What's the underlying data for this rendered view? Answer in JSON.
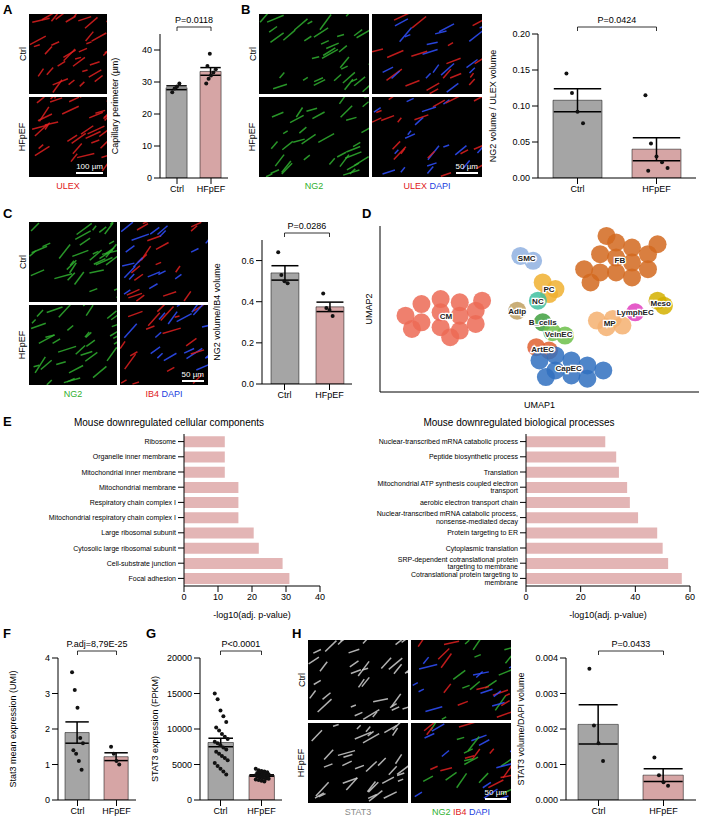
{
  "chart_data": [
    {
      "panel": "A",
      "type": "bar",
      "categories": [
        "Ctrl",
        "HFpEF"
      ],
      "values": [
        28.2,
        33.3
      ],
      "errors": [
        0.6,
        1.2
      ],
      "points": [
        [
          26.8,
          28.0,
          28.6,
          29.5
        ],
        [
          29.5,
          31.0,
          32.0,
          33.0,
          34.0,
          35.0,
          38.8
        ]
      ],
      "colors": [
        "#a5a5a5",
        "#d6a5a5"
      ],
      "y_label": "Capillary perimeter (µm)",
      "ylim": [
        0,
        45
      ],
      "yticks": [
        0,
        10,
        20,
        30,
        40
      ],
      "annotation": "P=0.0118"
    },
    {
      "panel": "B",
      "type": "bar",
      "categories": [
        "Ctrl",
        "HFpEF"
      ],
      "values": [
        0.108,
        0.04
      ],
      "errors": [
        0.016,
        0.016
      ],
      "points": [
        [
          0.145,
          0.118,
          0.092,
          0.076
        ],
        [
          0.115,
          0.048,
          0.03,
          0.022,
          0.014,
          0.01
        ]
      ],
      "colors": [
        "#a5a5a5",
        "#d6a5a5"
      ],
      "y_label": "NG2 volume / ULEX volume",
      "ylim": [
        0,
        0.2
      ],
      "yticks": [
        {
          "value": 0,
          "label": "0.00"
        },
        0.05,
        {
          "value": 0.1,
          "label": "0.10"
        },
        0.15,
        {
          "value": 0.2,
          "label": "0.20"
        }
      ],
      "annotation": "P=0.0424"
    },
    {
      "panel": "C",
      "type": "bar",
      "categories": [
        "Ctrl",
        "HFpEF"
      ],
      "values": [
        0.54,
        0.375
      ],
      "errors": [
        0.035,
        0.023
      ],
      "points": [
        [
          0.64,
          0.53,
          0.5,
          0.49
        ],
        [
          0.44,
          0.37,
          0.36,
          0.33
        ]
      ],
      "colors": [
        "#a5a5a5",
        "#d6a5a5"
      ],
      "y_label": "NG2 volume/IB4 volume",
      "ylim": [
        0,
        0.7
      ],
      "yticks": [
        {
          "value": 0,
          "label": "0.0"
        },
        0.2,
        0.4,
        0.6
      ],
      "annotation": "P=0.0286"
    },
    {
      "panel": "D",
      "type": "scatter",
      "x_label": "UMAP1",
      "y_label": "UMAP2",
      "xlim": [
        0,
        10
      ],
      "ylim": [
        0,
        10
      ],
      "tick_labels": false,
      "series": [
        {
          "name": "CM",
          "color": "#ec6a55",
          "points": [
            [
              0.8,
              4.6
            ],
            [
              1.3,
              5.3
            ],
            [
              1.3,
              4.2
            ],
            [
              1.9,
              5.6
            ],
            [
              1.9,
              4.8
            ],
            [
              1.9,
              3.9
            ],
            [
              2.5,
              5.4
            ],
            [
              2.5,
              4.6
            ],
            [
              2.5,
              3.7
            ],
            [
              3.0,
              4.9
            ],
            [
              3.0,
              4.1
            ],
            [
              1.0,
              3.8
            ],
            [
              2.2,
              3.3
            ],
            [
              3.2,
              5.5
            ]
          ]
        },
        {
          "name": "FB",
          "color": "#d2691e",
          "points": [
            [
              6.4,
              7.4
            ],
            [
              6.9,
              8.3
            ],
            [
              6.9,
              7.2
            ],
            [
              7.4,
              9.0
            ],
            [
              7.4,
              8.1
            ],
            [
              7.4,
              7.2
            ],
            [
              7.9,
              8.7
            ],
            [
              7.9,
              7.8
            ],
            [
              7.9,
              6.9
            ],
            [
              8.4,
              8.3
            ],
            [
              8.4,
              7.4
            ],
            [
              8.7,
              8.9
            ],
            [
              7.1,
              9.4
            ],
            [
              6.6,
              6.6
            ]
          ]
        },
        {
          "name": "SMC",
          "color": "#8fb0e0",
          "points": [
            [
              4.4,
              8.2
            ],
            [
              4.8,
              7.9
            ]
          ]
        },
        {
          "name": "PC",
          "color": "#f0b030",
          "points": [
            [
              5.1,
              6.6
            ],
            [
              5.5,
              6.2
            ],
            [
              5.3,
              5.9
            ]
          ]
        },
        {
          "name": "NC",
          "color": "#40c0a0",
          "points": [
            [
              4.95,
              5.5
            ]
          ]
        },
        {
          "name": "Adip",
          "color": "#c0a060",
          "points": [
            [
              4.3,
              4.9
            ]
          ]
        },
        {
          "name": "Meso",
          "color": "#d4b000",
          "points": [
            [
              8.7,
              5.5
            ],
            [
              8.9,
              5.2
            ]
          ]
        },
        {
          "name": "LymphEC",
          "color": "#e040c0",
          "points": [
            [
              8.0,
              4.8
            ]
          ]
        },
        {
          "name": "MP",
          "color": "#f5b070",
          "points": [
            [
              6.8,
              4.3
            ],
            [
              7.3,
              4.4
            ],
            [
              7.6,
              4.0
            ],
            [
              7.1,
              3.9
            ]
          ]
        },
        {
          "name": "B_cells",
          "color": "#40a040",
          "points": [
            [
              5.1,
              4.2
            ]
          ]
        },
        {
          "name": "VeinEC",
          "color": "#6cc04a",
          "points": [
            [
              5.4,
              3.6
            ],
            [
              5.8,
              3.4
            ]
          ]
        },
        {
          "name": "ArtEC",
          "color": "#e06030",
          "points": [
            [
              4.9,
              2.7
            ],
            [
              5.3,
              2.5
            ]
          ]
        },
        {
          "name": "CapEC",
          "color": "#3070c0",
          "points": [
            [
              5.0,
              1.9
            ],
            [
              5.5,
              2.2
            ],
            [
              5.5,
              1.3
            ],
            [
              6.0,
              1.9
            ],
            [
              6.0,
              1.0
            ],
            [
              6.5,
              1.6
            ],
            [
              6.5,
              0.8
            ],
            [
              7.0,
              1.3
            ],
            [
              5.2,
              0.9
            ]
          ]
        }
      ]
    },
    {
      "panel": "E",
      "type": "bar",
      "orientation": "horizontal",
      "title": "Mouse downregulated cellular components",
      "categories": [
        "Ribosome",
        "Organelle inner membrane",
        "Mitochondrial inner membrane",
        "Mitochondrial membrane",
        "Respiratory chain complex I",
        "Mitochondrial respiratory chain complex I",
        "Large ribosomal subunit",
        "Cytosolic large ribosomal subunit",
        "Cell-substrate junction",
        "Focal adhesion"
      ],
      "values": [
        12,
        12,
        12,
        16,
        16,
        16,
        20.5,
        22,
        29,
        31
      ],
      "color": "#e3b5b5",
      "x_label": "-log10(adj. p-value)",
      "xlim": [
        0,
        40
      ],
      "xticks": [
        0,
        10,
        20,
        30,
        40
      ]
    },
    {
      "type": "bar",
      "orientation": "horizontal",
      "title": "Mouse downregulated biological processes",
      "categories": [
        "Nuclear-transcribed mRNA catabolic process",
        "Peptide biosynthetic process",
        "Translation",
        "Mitochondrial ATP synthesis coupled electron transport",
        "aerobic electron transport chain",
        "Nuclear-transcribed mRNA catabolic process, nonsense-mediated decay",
        "Protein targeting to ER",
        "Cytoplasmic translation",
        "SRP-dependent cotranslational protein targeting to membrane",
        "Cotranslational protein targeting to membrane"
      ],
      "values": [
        29,
        33,
        34,
        37,
        38,
        41,
        48,
        50,
        52,
        57
      ],
      "color": "#e3b5b5",
      "x_label": "-log10(adj. p-value)",
      "xlim": [
        0,
        60
      ],
      "xticks": [
        0,
        20,
        40,
        60
      ]
    },
    {
      "panel": "F",
      "type": "bar",
      "categories": [
        "Ctrl",
        "HFpEF"
      ],
      "values": [
        1.9,
        1.22
      ],
      "errors": [
        0.3,
        0.11
      ],
      "points": [
        [
          3.6,
          3.1,
          2.6,
          1.75,
          1.6,
          1.4,
          1.3,
          1.1,
          0.85
        ],
        [
          1.5,
          1.3,
          1.1,
          1.0
        ]
      ],
      "colors": [
        "#a5a5a5",
        "#d6a5a5"
      ],
      "y_label": "Stat3 mean expression (UMI)",
      "ylim": [
        0,
        4
      ],
      "yticks": [
        0,
        1,
        2,
        3,
        4
      ],
      "annotation": "P.adj=8,79E-25"
    },
    {
      "panel": "G",
      "type": "bar",
      "categories": [
        "Ctrl",
        "HFpEF"
      ],
      "values": [
        8100,
        3450
      ],
      "errors": [
        600,
        100
      ],
      "points": [
        [
          15000,
          14200,
          12600,
          11800,
          11000,
          10200,
          9800,
          9300,
          8900,
          8600,
          8200,
          8000,
          7700,
          7400,
          7100,
          6800,
          6500,
          6200,
          5900,
          5600,
          5200,
          4800,
          4400,
          4000,
          3600
        ],
        [
          4400,
          4200,
          4100,
          4000,
          3900,
          3800,
          3800,
          3700,
          3600,
          3600,
          3500,
          3500,
          3400,
          3400,
          3300,
          3300,
          3200,
          3100,
          3000,
          3000,
          2900,
          2800,
          2700,
          2600
        ]
      ],
      "colors": [
        "#a5a5a5",
        "#d6a5a5"
      ],
      "y_label": "STAT3 expression (FPKM)",
      "ylim": [
        0,
        20000
      ],
      "yticks": [
        0,
        5000,
        10000,
        15000,
        20000
      ],
      "annotation": "P<0.0001"
    },
    {
      "panel": "H",
      "type": "bar",
      "categories": [
        "Ctrl",
        "HFpEF"
      ],
      "values": [
        0.00213,
        0.0007
      ],
      "errors": [
        0.00055,
        0.00018
      ],
      "points": [
        [
          0.0037,
          0.0021,
          0.0016,
          0.0011
        ],
        [
          0.0012,
          0.0007,
          0.0005,
          0.0004
        ]
      ],
      "colors": [
        "#a5a5a5",
        "#d6a5a5"
      ],
      "y_label": "STAT3 volume/DAPI volume",
      "ylim": [
        0,
        0.004
      ],
      "yticks": [
        {
          "value": 0,
          "label": "0.000"
        },
        0.001,
        0.002,
        0.003,
        {
          "value": 0.004,
          "label": "0.004"
        }
      ],
      "annotation": "P=0.0433"
    }
  ],
  "images": [
    {
      "rows": [
        "Ctrl",
        "HFpEF"
      ],
      "columns": [
        [
          {
            "text": "ULEX",
            "color": "#e02020"
          }
        ]
      ],
      "scale_bar": "100 µm"
    },
    {
      "rows": [
        "Ctrl",
        "HFpEF"
      ],
      "columns": [
        [
          {
            "text": "NG2",
            "color": "#30b030"
          }
        ],
        [
          {
            "text": "ULEX",
            "color": "#e02020"
          },
          {
            "text": "DAPI",
            "color": "#2040e0"
          }
        ]
      ],
      "scale_bar": "50 µm"
    },
    {
      "rows": [
        "Ctrl",
        "HFpEF"
      ],
      "columns": [
        [
          {
            "text": "NG2",
            "color": "#30b030"
          }
        ],
        [
          {
            "text": "IB4",
            "color": "#e02020"
          },
          {
            "text": "DAPI",
            "color": "#2040e0"
          }
        ]
      ],
      "scale_bar": "50 µm"
    },
    {
      "rows": [
        "Ctrl",
        "HFpEF"
      ],
      "columns": [
        [
          {
            "text": "STAT3",
            "color": "#8a8a8a"
          }
        ],
        [
          {
            "text": "NG2",
            "color": "#30b030"
          },
          {
            "text": "IB4",
            "color": "#e02020"
          },
          {
            "text": "DAPI",
            "color": "#2040e0"
          }
        ]
      ],
      "scale_bar": "50 µm"
    }
  ]
}
